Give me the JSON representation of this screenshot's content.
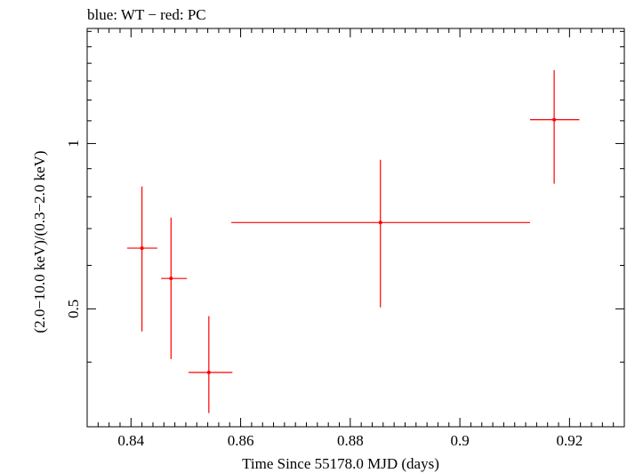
{
  "chart_data": {
    "type": "scatter",
    "title": "blue: WT − red: PC",
    "xlabel": "Time Since 55178.0 MJD (days)",
    "ylabel": "(2.0−10.0 keV)/(0.3−2.0 keV)",
    "xlim": [
      0.832,
      0.93
    ],
    "ylim": [
      0.305,
      1.62
    ],
    "yscale": "log",
    "x_ticks": [
      0.84,
      0.86,
      0.88,
      0.9,
      0.92
    ],
    "x_tick_labels": [
      "0.84",
      "0.86",
      "0.88",
      "0.9",
      "0.92"
    ],
    "y_ticks": [
      0.5,
      1
    ],
    "y_tick_labels": [
      "0.5",
      "1"
    ],
    "grid": false,
    "series": [
      {
        "color": "#ff0000",
        "points": [
          {
            "x": 0.842,
            "xlo": 0.8393,
            "xhi": 0.8448,
            "y": 0.645,
            "ylo": 0.455,
            "yhi": 0.835
          },
          {
            "x": 0.8473,
            "xlo": 0.8455,
            "xhi": 0.8502,
            "y": 0.568,
            "ylo": 0.405,
            "yhi": 0.733
          },
          {
            "x": 0.8542,
            "xlo": 0.8505,
            "xhi": 0.8585,
            "y": 0.383,
            "ylo": 0.323,
            "yhi": 0.485
          },
          {
            "x": 0.8855,
            "xlo": 0.8583,
            "xhi": 0.9128,
            "y": 0.718,
            "ylo": 0.503,
            "yhi": 0.934
          },
          {
            "x": 0.9172,
            "xlo": 0.9128,
            "xhi": 0.9218,
            "y": 1.105,
            "ylo": 0.845,
            "yhi": 1.36
          }
        ]
      }
    ]
  }
}
